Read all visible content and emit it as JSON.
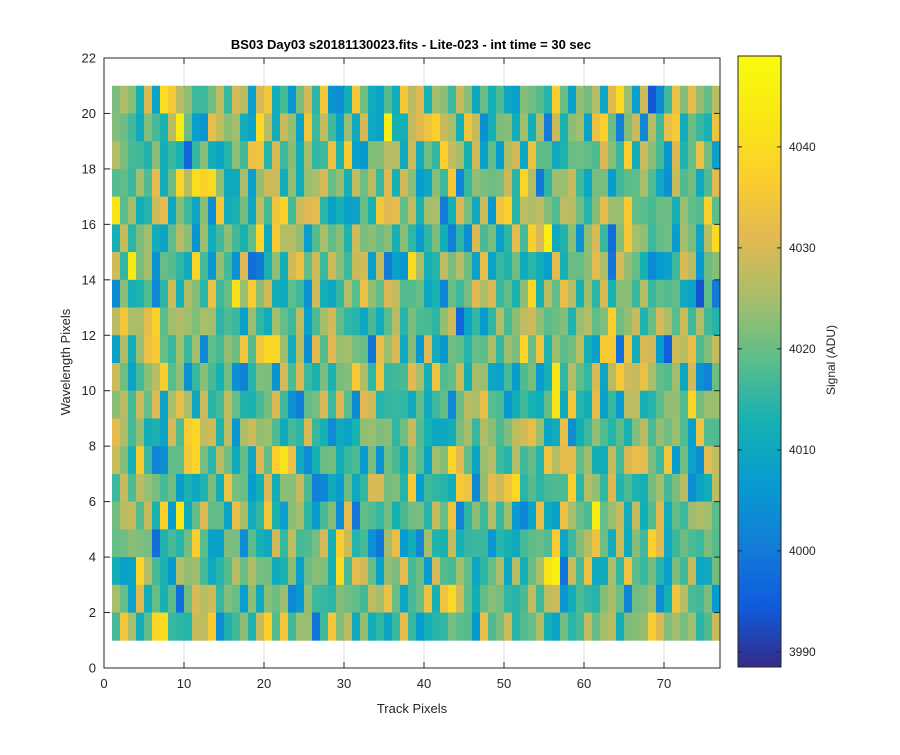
{
  "chart_data": {
    "type": "heatmap",
    "title": "BS03 Day03  s20181130023.fits - Lite-023 - int time = 30 sec",
    "xlabel": "Track Pixels",
    "ylabel": "Wavelength Pixels",
    "xlim": [
      0,
      77
    ],
    "ylim": [
      0,
      22
    ],
    "xticks": [
      0,
      10,
      20,
      30,
      40,
      50,
      60,
      70
    ],
    "yticks": [
      0,
      2,
      4,
      6,
      8,
      10,
      12,
      14,
      16,
      18,
      20,
      22
    ],
    "x_range": [
      1,
      77
    ],
    "y_range": [
      1,
      21
    ],
    "columns": 76,
    "rows": 20,
    "grid": true,
    "colormap": "parula",
    "colorbar": {
      "label": "Signal (ADU)",
      "range": [
        3988.5,
        4049
      ],
      "ticks": [
        3990,
        4000,
        4010,
        4020,
        4030,
        4040
      ]
    },
    "value_stats": {
      "mean": 4020,
      "spread": 9,
      "min": 3990,
      "max": 4049
    }
  }
}
